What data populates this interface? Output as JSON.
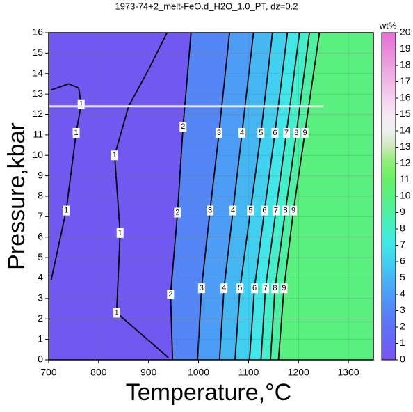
{
  "chart_data": {
    "type": "contour",
    "title": "1973-74+2_melt-FeO.d_H2O_1.0_PT, dz=0.2",
    "x_label": "Temperature,°C",
    "y_label": "Pressure,kbar",
    "xlim": [
      700,
      1350
    ],
    "xticks": [
      700,
      800,
      900,
      1000,
      1100,
      1200,
      1300
    ],
    "ylim": [
      0,
      16
    ],
    "yticks": [
      0,
      1,
      2,
      3,
      4,
      5,
      6,
      7,
      8,
      9,
      10,
      11,
      12,
      13,
      14,
      15,
      16
    ],
    "grid": true,
    "colorbar": {
      "label": "wt%",
      "lim": [
        0,
        20
      ],
      "ticks": [
        0,
        1,
        2,
        3,
        4,
        5,
        6,
        7,
        8,
        9,
        10,
        11,
        12,
        13,
        14,
        15,
        16,
        17,
        18,
        19,
        20
      ],
      "colors": [
        "#7b55f0",
        "#6a63f3",
        "#5d72f5",
        "#5486f6",
        "#4d9cf5",
        "#46b6f3",
        "#42d0f0",
        "#40e6e8",
        "#44f0cc",
        "#4ef0a4",
        "#5af080",
        "#66f068",
        "#88f070",
        "#cce8b8",
        "#eef0f0",
        "#f8e8f4",
        "#f4d0ee",
        "#f0b8e8",
        "#eca0e0",
        "#e888da",
        "#e470d4"
      ]
    },
    "background_color": "#7058f0",
    "contours": [
      {
        "level": 1,
        "x": [
          705,
          735,
          755,
          765,
          760,
          740,
          705
        ],
        "y": [
          3.9,
          7.3,
          11.1,
          12.5,
          13.3,
          13.5,
          13.2
        ]
      },
      {
        "level": 1,
        "x": [
          940,
          836,
          843,
          832,
          860,
          900,
          937
        ],
        "y": [
          0.1,
          2.3,
          6.2,
          10,
          12.4,
          14.2,
          16
        ]
      },
      {
        "level": 2,
        "x": [
          948,
          944,
          958,
          969,
          985
        ],
        "y": [
          0,
          3.2,
          7.2,
          11.4,
          16
        ]
      },
      {
        "level": 3,
        "x": [
          998,
          1006,
          1023,
          1041,
          1062
        ],
        "y": [
          0,
          3.5,
          7.3,
          11.1,
          16
        ]
      },
      {
        "level": 4,
        "x": [
          1042,
          1051,
          1069,
          1087,
          1110
        ],
        "y": [
          0,
          3.5,
          7.3,
          11.1,
          16
        ]
      },
      {
        "level": 5,
        "x": [
          1073,
          1083,
          1104,
          1125,
          1148
        ],
        "y": [
          0,
          3.5,
          7.3,
          11.1,
          16
        ]
      },
      {
        "level": 6,
        "x": [
          1102,
          1112,
          1132,
          1153,
          1178
        ],
        "y": [
          0,
          3.5,
          7.3,
          11.1,
          16
        ]
      },
      {
        "level": 7,
        "x": [
          1125,
          1134,
          1155,
          1176,
          1202
        ],
        "y": [
          0,
          3.5,
          7.3,
          11.1,
          16
        ]
      },
      {
        "level": 8,
        "x": [
          1144,
          1153,
          1174,
          1196,
          1222
        ],
        "y": [
          0,
          3.5,
          7.3,
          11.1,
          16
        ]
      },
      {
        "level": 9,
        "x": [
          1160,
          1171,
          1190,
          1213,
          1242
        ],
        "y": [
          0,
          3.5,
          7.3,
          11.1,
          16
        ]
      }
    ],
    "reference_line": {
      "y": 12.4,
      "x": [
        700,
        1250
      ],
      "color": "#e8e8e8"
    }
  }
}
